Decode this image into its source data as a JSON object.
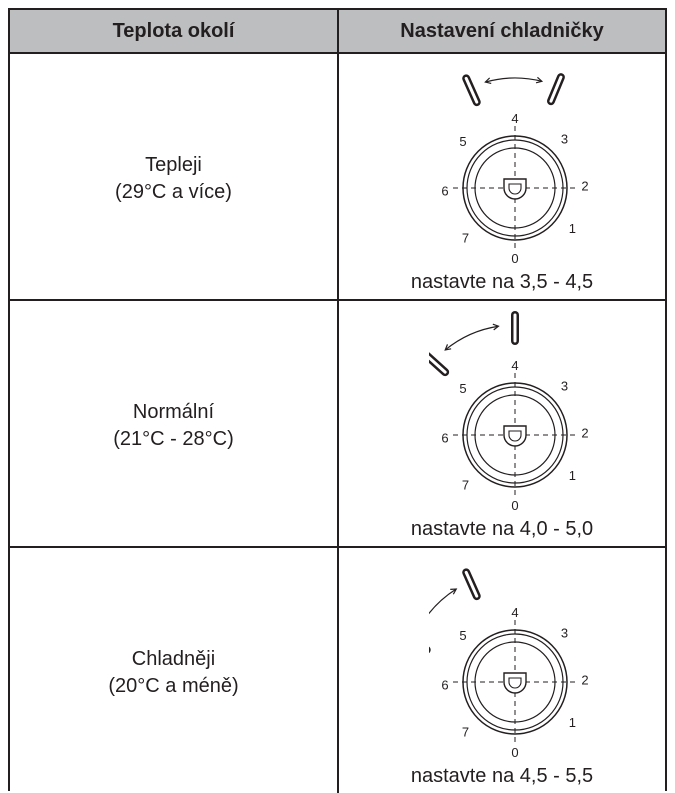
{
  "table": {
    "header": {
      "col1": "Teplota okolí",
      "col2": "Nastavení chladničky"
    },
    "rows": [
      {
        "condition": "Tepleji",
        "range": "(29°C a více)",
        "instruction": "nastavte na 3,5 - 4,5",
        "dial_setting": [
          3.5,
          4.5
        ]
      },
      {
        "condition": "Normální",
        "range": "(21°C - 28°C)",
        "instruction": "nastavte na 4,0 - 5,0",
        "dial_setting": [
          4.0,
          5.0
        ]
      },
      {
        "condition": "Chladněji",
        "range": "(20°C a méně)",
        "instruction": "nastavte na 4,5 - 5,5",
        "dial_setting": [
          4.5,
          5.5
        ]
      }
    ]
  },
  "dial_numbers": [
    "0",
    "1",
    "2",
    "3",
    "4",
    "5",
    "6",
    "7"
  ]
}
